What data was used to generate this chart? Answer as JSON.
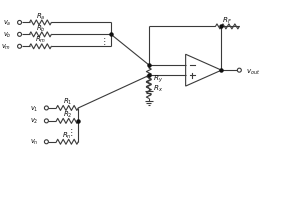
{
  "bg_color": "#ffffff",
  "line_color": "#3a3a3a",
  "dot_color": "#111111",
  "fig_width": 3.0,
  "fig_height": 2.01,
  "dpi": 100
}
